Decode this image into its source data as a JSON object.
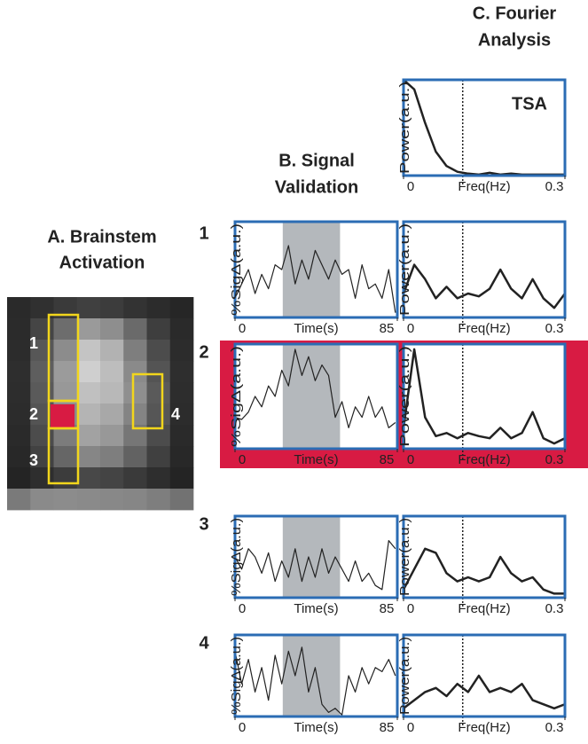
{
  "titles": {
    "a": [
      "A. Brainstem",
      "Activation"
    ],
    "b": [
      "B. Signal",
      "Validation"
    ],
    "c": [
      "C. Fourier",
      "Analysis"
    ]
  },
  "roi_labels": [
    "1",
    "2",
    "3",
    "4"
  ],
  "row_labels": [
    "1",
    "2",
    "3",
    "4"
  ],
  "chart_data": [
    {
      "type": "line",
      "title": "TSA",
      "ylabel": "Power(a.u.)",
      "xlabel": "Freq(Hz)",
      "x": [
        0,
        0.02,
        0.04,
        0.06,
        0.08,
        0.1,
        0.12,
        0.14,
        0.16,
        0.18,
        0.2,
        0.22,
        0.24,
        0.26,
        0.28,
        0.3
      ],
      "values": [
        1.0,
        0.9,
        0.55,
        0.25,
        0.1,
        0.04,
        0.02,
        0.01,
        0.03,
        0.01,
        0.02,
        0.01,
        0.01,
        0.01,
        0.01,
        0.01
      ],
      "xlim": [
        0,
        0.3
      ],
      "xticks": [
        0,
        0.3
      ],
      "ylim": [
        0,
        1
      ],
      "vline": 0.11,
      "color": "#222222",
      "line_width": 2.5
    },
    {
      "type": "line",
      "ylabel": "%SigΔ(a.u.)",
      "xlabel": "Time(s)",
      "x": [
        0,
        3.5,
        7,
        10.5,
        14,
        17.5,
        21,
        24.5,
        28,
        31.5,
        35,
        38.5,
        42,
        45.5,
        49,
        52.5,
        56,
        59.5,
        63,
        66.5,
        70,
        73.5,
        77,
        80.5,
        84
      ],
      "values": [
        0.2,
        0.35,
        0.5,
        0.25,
        0.45,
        0.3,
        0.55,
        0.5,
        0.75,
        0.35,
        0.6,
        0.4,
        0.7,
        0.55,
        0.4,
        0.6,
        0.45,
        0.5,
        0.2,
        0.55,
        0.3,
        0.35,
        0.2,
        0.5,
        0.05
      ],
      "xlim": [
        0,
        85
      ],
      "xticks": [
        0,
        85
      ],
      "ylim": [
        0,
        1
      ],
      "shade": [
        25,
        55
      ],
      "color": "#222222",
      "line_width": 1.2
    },
    {
      "type": "line",
      "ylabel": "Power(a.u.)",
      "xlabel": "Freq(Hz)",
      "x": [
        0,
        0.02,
        0.04,
        0.06,
        0.08,
        0.1,
        0.12,
        0.14,
        0.16,
        0.18,
        0.2,
        0.22,
        0.24,
        0.26,
        0.28,
        0.3
      ],
      "values": [
        0.25,
        0.55,
        0.4,
        0.2,
        0.32,
        0.2,
        0.25,
        0.22,
        0.3,
        0.5,
        0.3,
        0.2,
        0.4,
        0.2,
        0.1,
        0.25
      ],
      "xlim": [
        0,
        0.3
      ],
      "xticks": [
        0,
        0.3
      ],
      "ylim": [
        0,
        1
      ],
      "vline": 0.11,
      "color": "#222222",
      "line_width": 2.5
    },
    {
      "type": "line",
      "ylabel": "%SigΔ(a.u.)",
      "xlabel": "Time(s)",
      "x": [
        0,
        3.5,
        7,
        10.5,
        14,
        17.5,
        21,
        24.5,
        28,
        31.5,
        35,
        38.5,
        42,
        45.5,
        49,
        52.5,
        56,
        59.5,
        63,
        66.5,
        70,
        73.5,
        77,
        80.5,
        84
      ],
      "values": [
        0.3,
        0.28,
        0.35,
        0.5,
        0.4,
        0.6,
        0.5,
        0.75,
        0.6,
        0.95,
        0.7,
        0.88,
        0.65,
        0.8,
        0.7,
        0.3,
        0.45,
        0.2,
        0.4,
        0.3,
        0.5,
        0.3,
        0.4,
        0.2,
        0.25
      ],
      "xlim": [
        0,
        85
      ],
      "xticks": [
        0,
        85
      ],
      "ylim": [
        0,
        1
      ],
      "shade": [
        25,
        55
      ],
      "color": "#222222",
      "line_width": 1.2
    },
    {
      "type": "line",
      "ylabel": "Power(a.u.)",
      "xlabel": "Freq(Hz)",
      "x": [
        0,
        0.02,
        0.04,
        0.06,
        0.08,
        0.1,
        0.12,
        0.14,
        0.16,
        0.18,
        0.2,
        0.22,
        0.24,
        0.26,
        0.28,
        0.3
      ],
      "values": [
        0.2,
        0.95,
        0.3,
        0.12,
        0.15,
        0.1,
        0.15,
        0.12,
        0.1,
        0.2,
        0.1,
        0.15,
        0.35,
        0.1,
        0.05,
        0.1
      ],
      "xlim": [
        0,
        0.3
      ],
      "xticks": [
        0,
        0.3
      ],
      "ylim": [
        0,
        1
      ],
      "vline": 0.11,
      "color": "#222222",
      "line_width": 2.5
    },
    {
      "type": "line",
      "ylabel": "%SigΔ(a.u.)",
      "xlabel": "Time(s)",
      "x": [
        0,
        3.5,
        7,
        10.5,
        14,
        17.5,
        21,
        24.5,
        28,
        31.5,
        35,
        38.5,
        42,
        45.5,
        49,
        52.5,
        56,
        59.5,
        63,
        66.5,
        70,
        73.5,
        77,
        80.5,
        84
      ],
      "values": [
        0.5,
        0.35,
        0.6,
        0.5,
        0.3,
        0.55,
        0.2,
        0.45,
        0.25,
        0.6,
        0.2,
        0.5,
        0.25,
        0.6,
        0.3,
        0.5,
        0.35,
        0.2,
        0.45,
        0.2,
        0.3,
        0.15,
        0.1,
        0.7,
        0.6
      ],
      "xlim": [
        0,
        85
      ],
      "xticks": [
        0,
        85
      ],
      "ylim": [
        0,
        1
      ],
      "shade": [
        25,
        55
      ],
      "color": "#222222",
      "line_width": 1.2
    },
    {
      "type": "line",
      "ylabel": "Power(a.u.)",
      "xlabel": "Freq(Hz)",
      "x": [
        0,
        0.02,
        0.04,
        0.06,
        0.08,
        0.1,
        0.12,
        0.14,
        0.16,
        0.18,
        0.2,
        0.22,
        0.24,
        0.26,
        0.28,
        0.3
      ],
      "values": [
        0.1,
        0.35,
        0.6,
        0.55,
        0.3,
        0.2,
        0.25,
        0.2,
        0.25,
        0.5,
        0.3,
        0.2,
        0.25,
        0.1,
        0.05,
        0.05
      ],
      "xlim": [
        0,
        0.3
      ],
      "xticks": [
        0,
        0.3
      ],
      "ylim": [
        0,
        1
      ],
      "vline": 0.11,
      "color": "#222222",
      "line_width": 2.5
    },
    {
      "type": "line",
      "ylabel": "%SigΔ(a.u.)",
      "xlabel": "Time(s)",
      "x": [
        0,
        3.5,
        7,
        10.5,
        14,
        17.5,
        21,
        24.5,
        28,
        31.5,
        35,
        38.5,
        42,
        45.5,
        49,
        52.5,
        56,
        59.5,
        63,
        66.5,
        70,
        73.5,
        77,
        80.5,
        84
      ],
      "values": [
        0.8,
        0.4,
        0.7,
        0.3,
        0.6,
        0.2,
        0.75,
        0.4,
        0.8,
        0.5,
        0.85,
        0.3,
        0.6,
        0.15,
        0.05,
        0.1,
        0.02,
        0.5,
        0.3,
        0.6,
        0.4,
        0.6,
        0.55,
        0.7,
        0.5
      ],
      "xlim": [
        0,
        85
      ],
      "xticks": [
        0,
        85
      ],
      "ylim": [
        0,
        1
      ],
      "shade": [
        25,
        55
      ],
      "color": "#222222",
      "line_width": 1.2
    },
    {
      "type": "line",
      "ylabel": "Power(a.u.)",
      "xlabel": "Freq(Hz)",
      "x": [
        0,
        0.02,
        0.04,
        0.06,
        0.08,
        0.1,
        0.12,
        0.14,
        0.16,
        0.18,
        0.2,
        0.22,
        0.24,
        0.26,
        0.28,
        0.3
      ],
      "values": [
        0.1,
        0.2,
        0.3,
        0.35,
        0.25,
        0.4,
        0.3,
        0.5,
        0.3,
        0.35,
        0.3,
        0.4,
        0.2,
        0.15,
        0.1,
        0.15
      ],
      "xlim": [
        0,
        0.3
      ],
      "xticks": [
        0,
        0.3
      ],
      "ylim": [
        0,
        1
      ],
      "vline": 0.11,
      "color": "#222222",
      "line_width": 2.5
    }
  ]
}
